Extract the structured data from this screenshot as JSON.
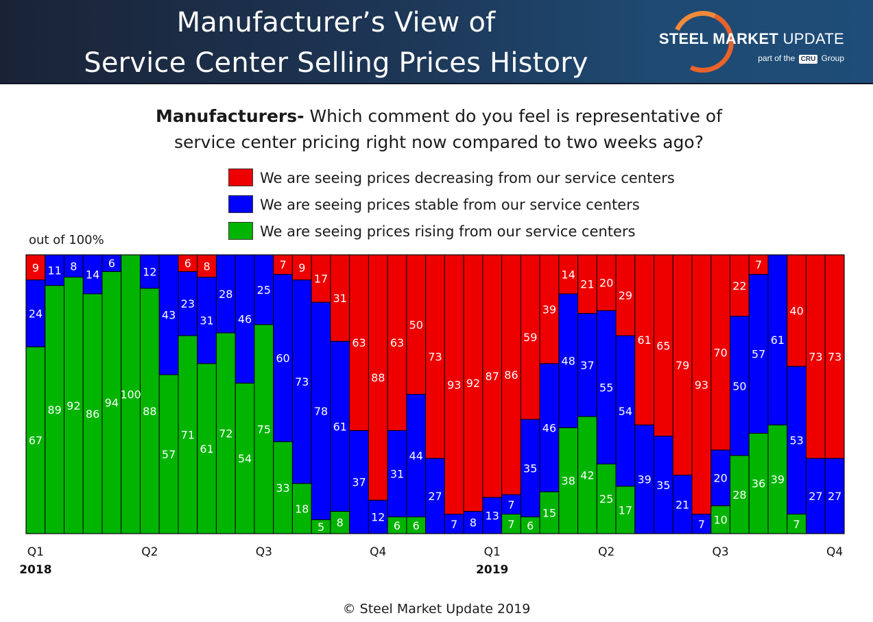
{
  "header": {
    "title_line1": "Manufacturer’s View of",
    "title_line2": "Service Center Selling Prices History",
    "logo_bold": "STEEL MARKET",
    "logo_light": "UPDATE",
    "logo_sub_before": "part of the",
    "logo_sub_badge": "CRU",
    "logo_sub_after": "Group"
  },
  "question": {
    "bold": "Manufacturers-",
    "rest_line1": "Which comment do you feel is representative of",
    "line2": "service center pricing right now compared to two weeks ago?"
  },
  "colors": {
    "decreasing": "#ee0000",
    "stable": "#0000ff",
    "rising": "#00b400"
  },
  "chart_data": {
    "type": "bar",
    "stacked": true,
    "title": "Manufacturers- Which comment do you feel is representative of service center pricing right now compared to two weeks ago?",
    "ylabel": "out of 100%",
    "ylim": [
      0,
      100
    ],
    "series": [
      {
        "name": "We are seeing prices rising from our service centers",
        "key": "rising",
        "values": [
          67,
          89,
          92,
          86,
          94,
          100,
          88,
          57,
          71,
          61,
          72,
          54,
          75,
          33,
          18,
          5,
          8,
          0,
          0,
          6,
          6,
          0,
          0,
          0,
          0,
          7,
          6,
          15,
          38,
          42,
          25,
          17,
          0,
          0,
          0,
          0,
          10,
          28,
          36,
          39,
          7,
          0,
          0
        ]
      },
      {
        "name": "We are seeing prices stable from our service centers",
        "key": "stable",
        "values": [
          24,
          11,
          8,
          14,
          6,
          0,
          12,
          43,
          23,
          31,
          28,
          46,
          25,
          60,
          73,
          78,
          61,
          37,
          12,
          31,
          44,
          27,
          7,
          8,
          13,
          7,
          35,
          46,
          48,
          37,
          55,
          54,
          39,
          35,
          21,
          7,
          20,
          50,
          57,
          61,
          53,
          27,
          27
        ]
      },
      {
        "name": "We are seeing prices decreasing from our service centers",
        "key": "decreasing",
        "values": [
          9,
          0,
          0,
          0,
          0,
          0,
          0,
          0,
          6,
          8,
          0,
          0,
          0,
          7,
          9,
          17,
          31,
          63,
          88,
          63,
          50,
          73,
          93,
          92,
          87,
          86,
          59,
          39,
          14,
          21,
          20,
          29,
          61,
          65,
          79,
          93,
          70,
          22,
          7,
          0,
          40,
          73,
          73
        ]
      }
    ],
    "x_ticks": [
      {
        "index": 0,
        "label": "Q1"
      },
      {
        "index": 6,
        "label": "Q2"
      },
      {
        "index": 12,
        "label": "Q3"
      },
      {
        "index": 18,
        "label": "Q4"
      },
      {
        "index": 24,
        "label": "Q1"
      },
      {
        "index": 30,
        "label": "Q2"
      },
      {
        "index": 36,
        "label": "Q3"
      },
      {
        "index": 42,
        "label": "Q4"
      }
    ],
    "year_labels": [
      {
        "index": 0,
        "label": "2018"
      },
      {
        "index": 24,
        "label": "2019"
      }
    ]
  },
  "footer": {
    "copyright": "© Steel Market Update 2019"
  }
}
